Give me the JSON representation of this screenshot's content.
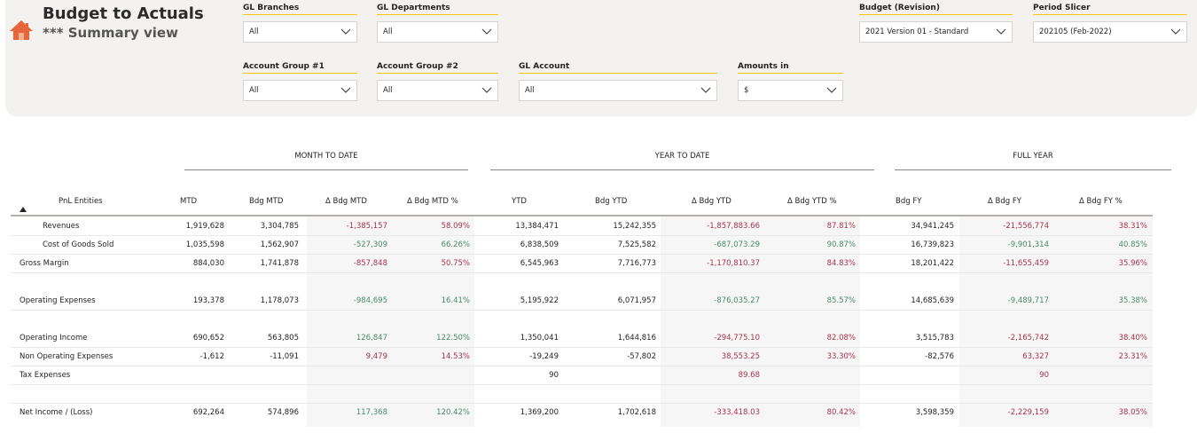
{
  "header": {
    "title": "Budget to Actuals",
    "subtitle": "*** Summary view"
  },
  "slicers": {
    "gl_branches": {
      "label": "GL Branches",
      "value": "All"
    },
    "gl_departments": {
      "label": "GL Departments",
      "value": "All"
    },
    "budget_revision": {
      "label": "Budget (Revision)",
      "value": "2021 Version 01 - Standard"
    },
    "period_slicer": {
      "label": "Period Slicer",
      "value": "202105 (Feb-2022)"
    },
    "account_group_1": {
      "label": "Account Group #1",
      "value": "All"
    },
    "account_group_2": {
      "label": "Account Group #2",
      "value": "All"
    },
    "gl_account": {
      "label": "GL Account",
      "value": "All"
    },
    "amounts_in": {
      "label": "Amounts in",
      "value": "$"
    }
  },
  "groups": {
    "mtd": "MONTH TO DATE",
    "ytd": "YEAR TO DATE",
    "fy": "FULL YEAR"
  },
  "columns": {
    "entity": "PnL Entities",
    "mtd": "MTD",
    "bdg_mtd": "Bdg MTD",
    "d_bdg_mtd": "Δ Bdg MTD",
    "d_bdg_mtd_pct": "Δ Bdg MTD %",
    "ytd": "YTD",
    "bdg_ytd": "Bdg YTD",
    "d_bdg_ytd": "Δ Bdg YTD",
    "d_bdg_ytd_pct": "Δ Bdg YTD %",
    "bdg_fy": "Bdg FY",
    "d_bdg_fy": "Δ Bdg FY",
    "d_bdg_fy_pct": "Δ Bdg FY %"
  },
  "colors": {
    "negative": "#a8324a",
    "positive": "#4a8a6e",
    "accent": "#f2c811",
    "home": "#e8643a"
  },
  "rows": [
    {
      "label": "Revenues",
      "indent": true,
      "cells": [
        "1,919,628",
        "3,304,785",
        "-1,385,157",
        "58.09%",
        "13,384,471",
        "15,242,355",
        "-1,857,883.66",
        "87.81%",
        "34,941,245",
        "-21,556,774",
        "38.31%"
      ],
      "tones": [
        "plain",
        "plain",
        "neg",
        "neg",
        "plain",
        "plain",
        "neg",
        "neg",
        "plain",
        "neg",
        "neg"
      ]
    },
    {
      "label": "Cost of Goods Sold",
      "indent": true,
      "cells": [
        "1,035,598",
        "1,562,907",
        "-527,309",
        "66.26%",
        "6,838,509",
        "7,525,582",
        "-687,073.29",
        "90.87%",
        "16,739,823",
        "-9,901,314",
        "40.85%"
      ],
      "tones": [
        "plain",
        "plain",
        "pos",
        "pos",
        "plain",
        "plain",
        "pos",
        "pos",
        "plain",
        "pos",
        "pos"
      ]
    },
    {
      "label": "Gross Margin",
      "indent": false,
      "cells": [
        "884,030",
        "1,741,878",
        "-857,848",
        "50.75%",
        "6,545,963",
        "7,716,773",
        "-1,170,810.37",
        "84.83%",
        "18,201,422",
        "-11,655,459",
        "35.96%"
      ],
      "tones": [
        "plain",
        "plain",
        "neg",
        "neg",
        "plain",
        "plain",
        "neg",
        "neg",
        "plain",
        "neg",
        "neg"
      ]
    },
    {
      "label": "",
      "indent": false,
      "cells": [
        "",
        "",
        "",
        "",
        "",
        "",
        "",
        "",
        "",
        "",
        ""
      ],
      "tones": [
        "plain",
        "plain",
        "plain",
        "plain",
        "plain",
        "plain",
        "plain",
        "plain",
        "plain",
        "plain",
        "plain"
      ]
    },
    {
      "label": "Operating Expenses",
      "indent": false,
      "cells": [
        "193,378",
        "1,178,073",
        "-984,695",
        "16.41%",
        "5,195,922",
        "6,071,957",
        "-876,035.27",
        "85.57%",
        "14,685,639",
        "-9,489,717",
        "35.38%"
      ],
      "tones": [
        "plain",
        "plain",
        "pos",
        "pos",
        "plain",
        "plain",
        "pos",
        "pos",
        "plain",
        "pos",
        "pos"
      ]
    },
    {
      "label": "",
      "indent": false,
      "cells": [
        "",
        "",
        "",
        "",
        "",
        "",
        "",
        "",
        "",
        "",
        ""
      ],
      "tones": [
        "plain",
        "plain",
        "plain",
        "plain",
        "plain",
        "plain",
        "plain",
        "plain",
        "plain",
        "plain",
        "plain"
      ]
    },
    {
      "label": "Operating Income",
      "indent": false,
      "cells": [
        "690,652",
        "563,805",
        "126,847",
        "122.50%",
        "1,350,041",
        "1,644,816",
        "-294,775.10",
        "82.08%",
        "3,515,783",
        "-2,165,742",
        "38.40%"
      ],
      "tones": [
        "plain",
        "plain",
        "pos",
        "pos",
        "plain",
        "plain",
        "neg",
        "neg",
        "plain",
        "neg",
        "neg"
      ]
    },
    {
      "label": "Non Operating Expenses",
      "indent": false,
      "cells": [
        "-1,612",
        "-11,091",
        "9,479",
        "14.53%",
        "-19,249",
        "-57,802",
        "38,553.25",
        "33.30%",
        "-82,576",
        "63,327",
        "23.31%"
      ],
      "tones": [
        "plain",
        "plain",
        "neg",
        "neg",
        "plain",
        "plain",
        "neg",
        "neg",
        "plain",
        "neg",
        "neg"
      ]
    },
    {
      "label": "Tax Expenses",
      "indent": false,
      "cells": [
        "",
        "",
        "",
        "",
        "90",
        "",
        "89.68",
        "",
        "",
        "90",
        ""
      ],
      "tones": [
        "plain",
        "plain",
        "plain",
        "plain",
        "plain",
        "plain",
        "neg",
        "plain",
        "plain",
        "neg",
        "plain"
      ]
    },
    {
      "label": "",
      "indent": false,
      "cells": [
        "",
        "",
        "",
        "",
        "",
        "",
        "",
        "",
        "",
        "",
        ""
      ],
      "tones": [
        "plain",
        "plain",
        "plain",
        "plain",
        "plain",
        "plain",
        "plain",
        "plain",
        "plain",
        "plain",
        "plain"
      ]
    },
    {
      "label": "Net Income / (Loss)",
      "indent": false,
      "cells": [
        "692,264",
        "574,896",
        "117,368",
        "120.42%",
        "1,369,200",
        "1,702,618",
        "-333,418.03",
        "80.42%",
        "3,598,359",
        "-2,229,159",
        "38.05%"
      ],
      "tones": [
        "plain",
        "plain",
        "pos",
        "pos",
        "plain",
        "plain",
        "neg",
        "neg",
        "plain",
        "neg",
        "neg"
      ]
    }
  ]
}
